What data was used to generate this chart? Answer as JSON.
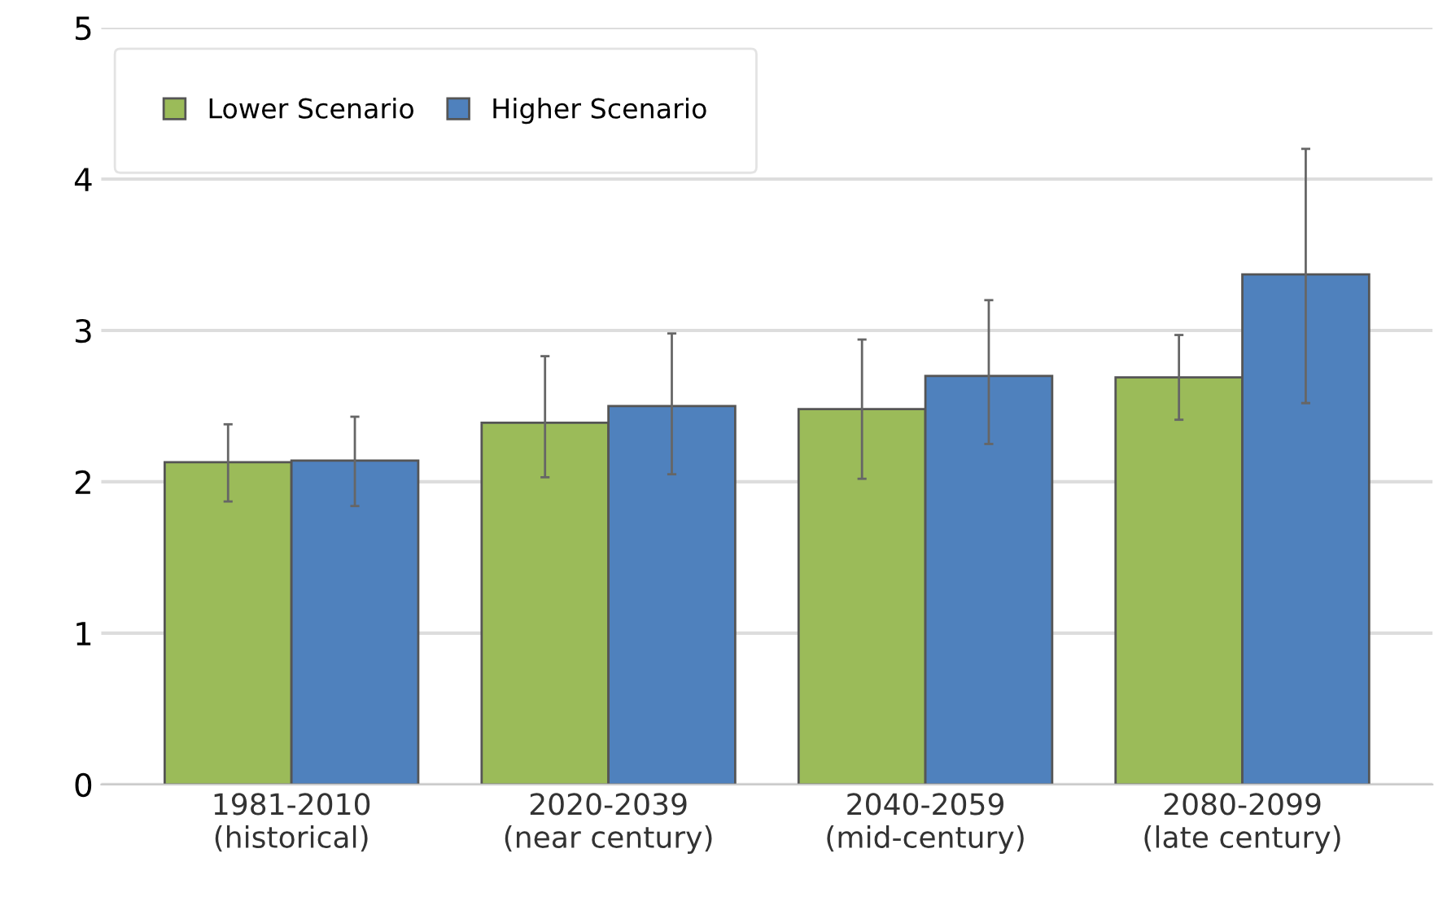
{
  "chart_data": {
    "type": "bar",
    "categories": [
      "1981-2010\n(historical)",
      "2020-2039\n(near century)",
      "2040-2059\n(mid-century)",
      "2080-2099\n(late century)"
    ],
    "series": [
      {
        "name": "Lower Scenario",
        "color": "#9bbb59",
        "values": [
          2.13,
          2.39,
          2.48,
          2.69
        ],
        "errors": [
          [
            1.87,
            2.38
          ],
          [
            2.03,
            2.83
          ],
          [
            2.02,
            2.94
          ],
          [
            2.41,
            2.97
          ]
        ]
      },
      {
        "name": "Higher Scenario",
        "color": "#4f81bd",
        "values": [
          2.14,
          2.5,
          2.7,
          3.37
        ],
        "errors": [
          [
            1.84,
            2.43
          ],
          [
            2.05,
            2.98
          ],
          [
            2.25,
            3.2
          ],
          [
            2.52,
            4.2
          ]
        ]
      }
    ],
    "ylim": [
      0,
      5
    ],
    "yticks": [
      0,
      1,
      2,
      3,
      4,
      5
    ],
    "grid": "y",
    "legend": "top left"
  }
}
